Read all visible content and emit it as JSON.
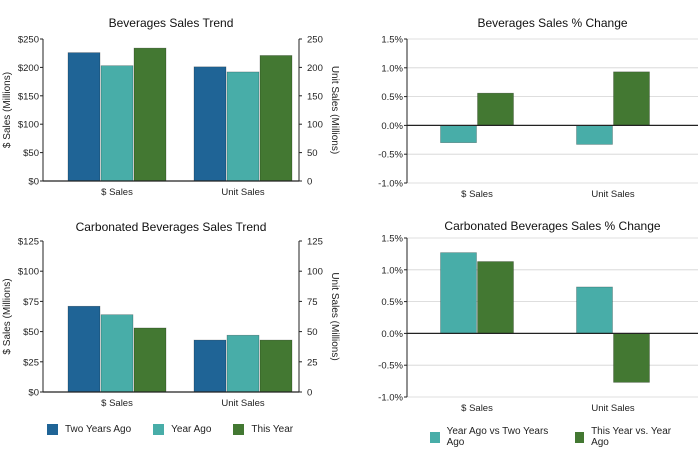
{
  "colors": {
    "two_years_ago": "#1f6496",
    "year_ago": "#48ada8",
    "this_year": "#437832",
    "axis": "#222222",
    "grid": "#d4d4d4"
  },
  "legend_left": {
    "items": [
      {
        "label": "Two Years Ago",
        "color_key": "two_years_ago"
      },
      {
        "label": "Year Ago",
        "color_key": "year_ago"
      },
      {
        "label": "This Year",
        "color_key": "this_year"
      }
    ]
  },
  "legend_right": {
    "items": [
      {
        "label": "Year Ago vs Two Years Ago",
        "color_key": "year_ago"
      },
      {
        "label": "This Year vs. Year Ago",
        "color_key": "this_year"
      }
    ]
  },
  "chart_data": [
    {
      "id": "bev-trend",
      "type": "bar",
      "title": "Beverages Sales Trend",
      "categories": [
        "$ Sales",
        "Unit Sales"
      ],
      "series": [
        {
          "name": "Two Years Ago",
          "color_key": "two_years_ago",
          "values": [
            226,
            201
          ]
        },
        {
          "name": "Year Ago",
          "color_key": "year_ago",
          "values": [
            203,
            192
          ]
        },
        {
          "name": "This Year",
          "color_key": "this_year",
          "values": [
            234,
            221
          ]
        }
      ],
      "ylabel": "$ Sales (Millions)",
      "ylim": [
        0,
        250
      ],
      "yticks": [
        0,
        50,
        100,
        150,
        200,
        250
      ],
      "ytick_labels": [
        "$0",
        "$50",
        "$100",
        "$150",
        "$200",
        "$250"
      ],
      "y2label": "Unit Sales (Millions)",
      "y2ticks": [
        0,
        50,
        100,
        150,
        200,
        250
      ],
      "y2tick_labels": [
        "0",
        "50",
        "100",
        "150",
        "200",
        "250"
      ]
    },
    {
      "id": "bev-change",
      "type": "bar",
      "title": "Beverages Sales % Change",
      "categories": [
        "$ Sales",
        "Unit Sales"
      ],
      "series": [
        {
          "name": "Year Ago vs Two Years Ago",
          "color_key": "year_ago",
          "values": [
            -0.3,
            -0.33
          ]
        },
        {
          "name": "This Year vs. Year Ago",
          "color_key": "this_year",
          "values": [
            0.56,
            0.93
          ]
        }
      ],
      "ylim": [
        -1.0,
        1.5
      ],
      "yticks": [
        -1.0,
        -0.5,
        0.0,
        0.5,
        1.0,
        1.5
      ],
      "ytick_labels": [
        "-1.0%",
        "-0.5%",
        "0.0%",
        "0.5%",
        "1.0%",
        "1.5%"
      ],
      "grid": true
    },
    {
      "id": "carb-trend",
      "type": "bar",
      "title": "Carbonated Beverages Sales Trend",
      "categories": [
        "$ Sales",
        "Unit Sales"
      ],
      "series": [
        {
          "name": "Two Years Ago",
          "color_key": "two_years_ago",
          "values": [
            71,
            43
          ]
        },
        {
          "name": "Year Ago",
          "color_key": "year_ago",
          "values": [
            64,
            47
          ]
        },
        {
          "name": "This Year",
          "color_key": "this_year",
          "values": [
            53,
            43
          ]
        }
      ],
      "ylabel": "$ Sales (Millions)",
      "ylim": [
        0,
        125
      ],
      "yticks": [
        0,
        25,
        50,
        75,
        100,
        125
      ],
      "ytick_labels": [
        "$0",
        "$25",
        "$50",
        "$75",
        "$100",
        "$125"
      ],
      "y2label": "Unit Sales (Millions)",
      "y2ticks": [
        0,
        25,
        50,
        75,
        100,
        125
      ],
      "y2tick_labels": [
        "0",
        "25",
        "50",
        "75",
        "100",
        "125"
      ]
    },
    {
      "id": "carb-change",
      "type": "bar",
      "title": "Carbonated Beverages Sales % Change",
      "categories": [
        "$ Sales",
        "Unit Sales"
      ],
      "series": [
        {
          "name": "Year Ago vs Two Years Ago",
          "color_key": "year_ago",
          "values": [
            1.27,
            0.73
          ]
        },
        {
          "name": "This Year vs. Year Ago",
          "color_key": "this_year",
          "values": [
            1.13,
            -0.77
          ]
        }
      ],
      "ylim": [
        -1.0,
        1.5
      ],
      "yticks": [
        -1.0,
        -0.5,
        0.0,
        0.5,
        1.0,
        1.5
      ],
      "ytick_labels": [
        "-1.0%",
        "-0.5%",
        "0.0%",
        "0.5%",
        "1.0%",
        "1.5%"
      ],
      "grid": true
    }
  ]
}
